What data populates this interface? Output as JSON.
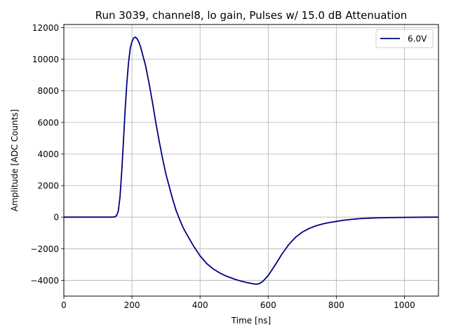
{
  "chart_data": {
    "type": "line",
    "title": "Run 3039, channel8, lo gain, Pulses w/ 15.0 dB Attenuation",
    "xlabel": "Time [ns]",
    "ylabel": "Amplitude [ADC Counts]",
    "xlim": [
      0,
      1100
    ],
    "ylim": [
      -5000,
      12200
    ],
    "xticks": [
      0,
      200,
      400,
      600,
      800,
      1000
    ],
    "yticks": [
      -4000,
      -2000,
      0,
      2000,
      4000,
      6000,
      8000,
      10000,
      12000
    ],
    "grid": true,
    "legend_position": "top-right",
    "series": [
      {
        "name": "6.0V",
        "color": "#000080",
        "x": [
          0,
          50,
          100,
          140,
          150,
          155,
          160,
          165,
          170,
          175,
          180,
          185,
          190,
          195,
          200,
          205,
          210,
          215,
          220,
          225,
          230,
          240,
          250,
          260,
          270,
          280,
          290,
          300,
          310,
          320,
          330,
          340,
          350,
          360,
          380,
          400,
          420,
          440,
          460,
          480,
          500,
          520,
          540,
          555,
          565,
          575,
          585,
          600,
          620,
          640,
          660,
          680,
          700,
          720,
          740,
          760,
          780,
          800,
          820,
          840,
          860,
          880,
          900,
          920,
          950,
          1000,
          1050,
          1100
        ],
        "y": [
          0,
          0,
          0,
          0,
          20,
          100,
          400,
          1300,
          2900,
          4800,
          6800,
          8500,
          9800,
          10700,
          11100,
          11350,
          11400,
          11300,
          11100,
          10800,
          10400,
          9600,
          8500,
          7300,
          6000,
          4800,
          3700,
          2700,
          1900,
          1100,
          400,
          -150,
          -650,
          -1050,
          -1800,
          -2450,
          -2950,
          -3300,
          -3560,
          -3760,
          -3920,
          -4050,
          -4150,
          -4220,
          -4250,
          -4200,
          -4050,
          -3700,
          -3050,
          -2350,
          -1750,
          -1280,
          -950,
          -720,
          -550,
          -430,
          -340,
          -270,
          -200,
          -150,
          -110,
          -80,
          -60,
          -45,
          -30,
          -15,
          -5,
          0
        ]
      }
    ]
  }
}
